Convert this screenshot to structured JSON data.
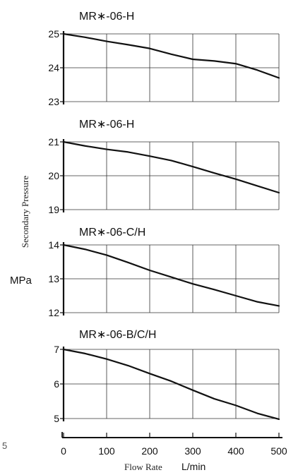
{
  "figure": {
    "ylabel_name": "Secondary Pressure",
    "ylabel_unit": "MPa",
    "xlabel_name": "Flow Rate",
    "xlabel_unit": "L/min",
    "side_mark": "5",
    "x_ticks": [
      "0",
      "100",
      "200",
      "300",
      "400",
      "500"
    ],
    "line_color": "#111111",
    "grid_color": "#333333"
  },
  "chart_data": [
    {
      "type": "line",
      "title": "MR∗-06-H",
      "xlabel": "Flow Rate L/min",
      "ylabel": "Secondary Pressure MPa",
      "xlim": [
        0,
        500
      ],
      "ylim": [
        23,
        25
      ],
      "y_ticks": [
        "23",
        "24",
        "25"
      ],
      "grid": true,
      "x": [
        0,
        50,
        100,
        150,
        200,
        250,
        300,
        350,
        400,
        450,
        500
      ],
      "y": [
        25.0,
        24.9,
        24.78,
        24.68,
        24.57,
        24.4,
        24.25,
        24.2,
        24.12,
        23.93,
        23.7
      ]
    },
    {
      "type": "line",
      "title": "MR∗-06-H",
      "xlabel": "Flow Rate L/min",
      "ylabel": "Secondary Pressure MPa",
      "xlim": [
        0,
        500
      ],
      "ylim": [
        19,
        21
      ],
      "y_ticks": [
        "19",
        "20",
        "21"
      ],
      "grid": true,
      "x": [
        0,
        50,
        100,
        150,
        200,
        250,
        300,
        350,
        400,
        450,
        500
      ],
      "y": [
        21.0,
        20.88,
        20.78,
        20.7,
        20.58,
        20.45,
        20.27,
        20.08,
        19.9,
        19.7,
        19.5
      ]
    },
    {
      "type": "line",
      "title": "MR∗-06-C/H",
      "xlabel": "Flow Rate L/min",
      "ylabel": "Secondary Pressure MPa",
      "xlim": [
        0,
        500
      ],
      "ylim": [
        12,
        14
      ],
      "y_ticks": [
        "12",
        "13",
        "14"
      ],
      "grid": true,
      "x": [
        0,
        50,
        100,
        150,
        200,
        250,
        300,
        350,
        400,
        450,
        500
      ],
      "y": [
        14.0,
        13.87,
        13.7,
        13.48,
        13.25,
        13.05,
        12.85,
        12.68,
        12.5,
        12.32,
        12.2
      ]
    },
    {
      "type": "line",
      "title": "MR∗-06-B/C/H",
      "xlabel": "Flow Rate L/min",
      "ylabel": "Secondary Pressure MPa",
      "xlim": [
        0,
        500
      ],
      "ylim": [
        5,
        7
      ],
      "y_ticks": [
        "5",
        "6",
        "7"
      ],
      "grid": true,
      "x": [
        0,
        50,
        100,
        150,
        200,
        250,
        300,
        350,
        400,
        450,
        500
      ],
      "y": [
        7.0,
        6.88,
        6.72,
        6.53,
        6.3,
        6.08,
        5.82,
        5.57,
        5.38,
        5.15,
        4.98
      ]
    }
  ]
}
